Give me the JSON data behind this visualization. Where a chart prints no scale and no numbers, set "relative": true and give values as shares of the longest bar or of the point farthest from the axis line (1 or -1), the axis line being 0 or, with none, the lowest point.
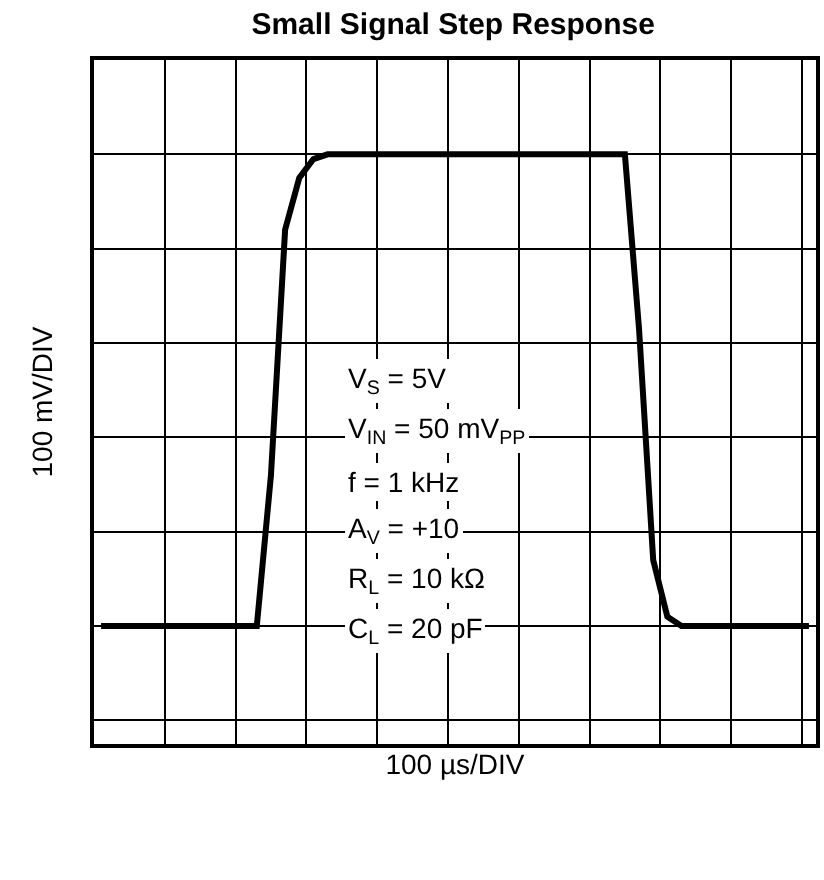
{
  "chart_data": {
    "type": "line",
    "title": "Small Signal Step Response",
    "xlabel": "100 µs/DIV",
    "ylabel": "100 mV/DIV",
    "relative": true,
    "grid": true,
    "marker": "none",
    "line_style": "solid",
    "tick_labels": false,
    "categories": [
      null,
      null,
      null,
      null,
      null,
      null,
      null,
      null,
      null,
      null,
      null,
      null,
      null,
      null,
      null,
      null,
      null,
      null,
      null,
      null,
      null,
      null,
      null,
      null,
      null,
      null,
      null,
      null,
      null,
      null,
      null,
      null,
      null,
      null,
      null,
      null,
      null,
      null,
      null,
      null,
      null,
      null,
      null,
      null,
      null,
      null,
      null,
      null,
      null,
      null,
      null
    ],
    "series": [
      {
        "color": "#000000",
        "values": [
          0,
          0,
          0,
          0,
          0,
          0,
          0,
          0,
          0,
          0,
          0,
          0,
          0.32,
          0.84,
          0.95,
          0.99,
          1,
          1,
          1,
          1,
          1,
          1,
          1,
          1,
          1,
          1,
          1,
          1,
          1,
          1,
          1,
          1,
          1,
          1,
          1,
          1,
          1,
          1,
          0.63,
          0.14,
          0.02,
          0,
          0,
          0,
          0,
          0,
          0,
          0,
          0,
          0,
          0
        ]
      }
    ],
    "annotations": [
      "V$_{S}$ = 5V",
      "V$_{IN}$ = 50 mV$_{PP}$",
      "f = 1 kHz",
      "A$_{V}$ = +10",
      "R$_{L}$ = 10 kΩ",
      "C$_{L}$ = 20 pF"
    ]
  }
}
